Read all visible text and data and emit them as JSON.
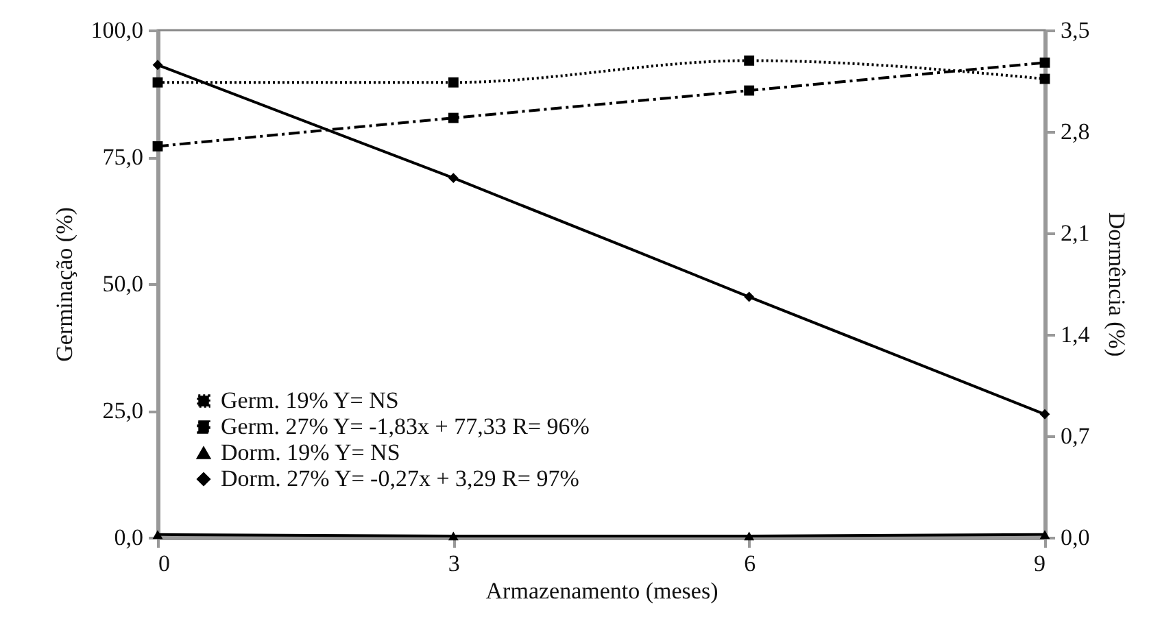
{
  "chart_data": {
    "type": "line",
    "xlabel": "Armazenamento (meses)",
    "ylabel": "Germinação (%)",
    "y2label": "Dormência (%)",
    "x": [
      0,
      3,
      6,
      9
    ],
    "xlim": [
      0,
      9
    ],
    "xticks": [
      0,
      3,
      6,
      9
    ],
    "ylim": [
      0,
      100
    ],
    "yticks": [
      {
        "value": 0,
        "label": "0,0"
      },
      {
        "value": 25,
        "label": "25,0"
      },
      {
        "value": 50,
        "label": "50,0"
      },
      {
        "value": 75,
        "label": "75,0"
      },
      {
        "value": 100,
        "label": "100,0"
      }
    ],
    "y2lim": [
      0,
      3.5
    ],
    "y2ticks": [
      {
        "value": 0,
        "label": "0,0"
      },
      {
        "value": 0.7,
        "label": "0,7"
      },
      {
        "value": 1.4,
        "label": "1,4"
      },
      {
        "value": 2.1,
        "label": "2,1"
      },
      {
        "value": 2.8,
        "label": "2,8"
      },
      {
        "value": 3.5,
        "label": "3,5"
      }
    ],
    "grid": false,
    "legend": "bottom left",
    "series": [
      {
        "name": "Germ. 19%  Y= NS",
        "color": "#000000",
        "marker": "square",
        "line_style": "dotted",
        "values": [
          89.7,
          89.7,
          94,
          90.4
        ]
      },
      {
        "name": "Germ. 27%  Y= -1,83x + 77,33 R= 96%",
        "color": "#000000",
        "marker": "square",
        "line_style": "dashed",
        "values": [
          77.1,
          82.7,
          88.1,
          93.6
        ]
      },
      {
        "name": "Dorm. 19%  Y= NS",
        "color": "#000000",
        "marker": "triangle",
        "line_style": "solid",
        "axis": "y2",
        "values": [
          0.02,
          0.01,
          0.01,
          0.02
        ]
      },
      {
        "name": "Dorm. 27%  Y= -0,27x + 3,29 R= 97%",
        "color": "#000000",
        "marker": "diamond",
        "line_style": "solid",
        "axis": "y2",
        "values": [
          3.26,
          2.48,
          1.66,
          0.85
        ]
      }
    ]
  }
}
